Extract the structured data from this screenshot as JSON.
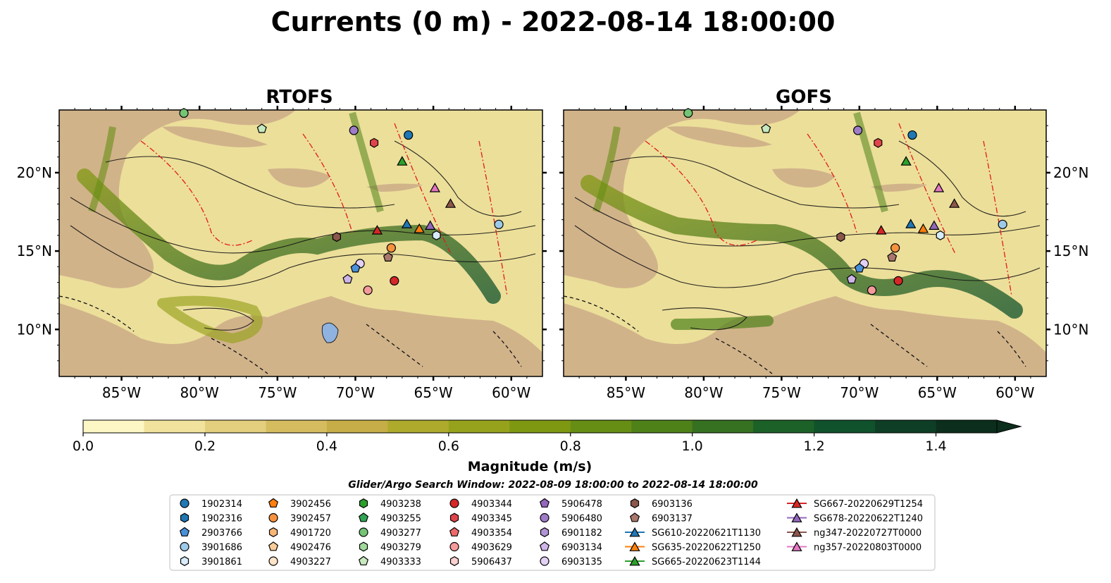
{
  "chart_data": {
    "type": "heatmap",
    "title": "Currents (0 m) - 2022-08-14 18:00:00",
    "panels": [
      {
        "title": "RTOFS",
        "tick_side": "left"
      },
      {
        "title": "GOFS",
        "tick_side": "right"
      }
    ],
    "extent": {
      "lon": [
        -89,
        -58
      ],
      "lat": [
        7,
        24
      ]
    },
    "lon_ticks": [
      -85,
      -80,
      -75,
      -70,
      -65,
      -60
    ],
    "lon_tick_labels": [
      "85°W",
      "80°W",
      "75°W",
      "70°W",
      "65°W",
      "60°W"
    ],
    "lat_ticks": [
      10,
      15,
      20
    ],
    "lat_tick_labels": [
      "10°N",
      "15°N",
      "20°N"
    ],
    "colorbar": {
      "label": "Magnitude (m/s)",
      "min": 0.0,
      "max": 1.5,
      "step": 0.1,
      "extend": "max",
      "ticks": [
        0.0,
        0.2,
        0.4,
        0.6,
        0.8,
        1.0,
        1.2,
        1.4
      ],
      "tick_labels": [
        "0.0",
        "0.2",
        "0.4",
        "0.6",
        "0.8",
        "1.0",
        "1.2",
        "1.4"
      ],
      "colors": [
        "#fdf7c6",
        "#f1e39e",
        "#e3cf7d",
        "#d5bd5f",
        "#c6ad47",
        "#aeaa2c",
        "#97a21c",
        "#7f9812",
        "#678e14",
        "#4f8119",
        "#367121",
        "#1c6228",
        "#10522c",
        "#0e3f26",
        "#0c2e1c"
      ]
    },
    "search_window": "Glider/Argo Search Window: 2022-08-09 18:00:00 to 2022-08-14 18:00:00",
    "legend": [
      {
        "name": "1902314",
        "marker": "circle",
        "color": "#1f77b4"
      },
      {
        "name": "1902316",
        "marker": "hexagon",
        "color": "#1f77b4"
      },
      {
        "name": "2903766",
        "marker": "pentagon",
        "color": "#4a90d9"
      },
      {
        "name": "3901686",
        "marker": "circle",
        "color": "#9ecae9"
      },
      {
        "name": "3901861",
        "marker": "hexagon",
        "color": "#d9ecf9"
      },
      {
        "name": "3902456",
        "marker": "pentagon",
        "color": "#ff7f0e"
      },
      {
        "name": "3902457",
        "marker": "circle",
        "color": "#f5923e"
      },
      {
        "name": "4901720",
        "marker": "hexagon",
        "color": "#f8b677"
      },
      {
        "name": "4902476",
        "marker": "pentagon",
        "color": "#fbcb99"
      },
      {
        "name": "4903227",
        "marker": "circle",
        "color": "#fde3c7"
      },
      {
        "name": "4903238",
        "marker": "hexagon",
        "color": "#2ca02c"
      },
      {
        "name": "4903255",
        "marker": "pentagon",
        "color": "#31a354"
      },
      {
        "name": "4903277",
        "marker": "circle",
        "color": "#74c476"
      },
      {
        "name": "4903279",
        "marker": "hexagon",
        "color": "#a1d99b"
      },
      {
        "name": "4903333",
        "marker": "pentagon",
        "color": "#c7e9c0"
      },
      {
        "name": "4903344",
        "marker": "circle",
        "color": "#d62728"
      },
      {
        "name": "4903345",
        "marker": "hexagon",
        "color": "#e0444a"
      },
      {
        "name": "4903354",
        "marker": "pentagon",
        "color": "#ee6a6a"
      },
      {
        "name": "4903629",
        "marker": "circle",
        "color": "#f59a9a"
      },
      {
        "name": "5906437",
        "marker": "hexagon",
        "color": "#fdd0d0"
      },
      {
        "name": "5906478",
        "marker": "pentagon",
        "color": "#9467bd"
      },
      {
        "name": "5906480",
        "marker": "circle",
        "color": "#9e7cc7"
      },
      {
        "name": "6901182",
        "marker": "hexagon",
        "color": "#b294d6"
      },
      {
        "name": "6903134",
        "marker": "pentagon",
        "color": "#cdb5e8"
      },
      {
        "name": "6903135",
        "marker": "circle",
        "color": "#e3d1f5"
      },
      {
        "name": "6903136",
        "marker": "hexagon",
        "color": "#8c564b"
      },
      {
        "name": "6903137",
        "marker": "pentagon",
        "color": "#a9776b"
      },
      {
        "name": "SG610-20220621T1130",
        "marker": "triangle-line",
        "color": "#1f77b4"
      },
      {
        "name": "SG635-20220622T1250",
        "marker": "triangle-line",
        "color": "#ff7f0e"
      },
      {
        "name": "SG665-20220623T1144",
        "marker": "triangle-line",
        "color": "#2ca02c"
      },
      {
        "name": "SG667-20220629T1254",
        "marker": "triangle-line",
        "color": "#d62728"
      },
      {
        "name": "SG678-20220622T1240",
        "marker": "triangle-line",
        "color": "#9467bd"
      },
      {
        "name": "ng347-20220727T0000",
        "marker": "triangle-line",
        "color": "#8c564b"
      },
      {
        "name": "ng357-20220803T0000",
        "marker": "triangle-line",
        "color": "#e377c2"
      }
    ],
    "observations": {
      "RTOFS": [
        {
          "name": "1902314",
          "lon": -66.6,
          "lat": 22.4
        },
        {
          "name": "3901686",
          "lon": -60.8,
          "lat": 16.7
        },
        {
          "name": "3901861",
          "lon": -64.8,
          "lat": 16.0
        },
        {
          "name": "3902457",
          "lon": -67.7,
          "lat": 15.2
        },
        {
          "name": "4903333",
          "lon": -76.0,
          "lat": 22.8
        },
        {
          "name": "4903277",
          "lon": -81.0,
          "lat": 23.8
        },
        {
          "name": "4903344",
          "lon": -67.5,
          "lat": 13.1
        },
        {
          "name": "4903345",
          "lon": -68.8,
          "lat": 21.9
        },
        {
          "name": "4903629",
          "lon": -69.2,
          "lat": 12.5
        },
        {
          "name": "6903136",
          "lon": -71.2,
          "lat": 15.9
        },
        {
          "name": "6903137",
          "lon": -67.9,
          "lat": 14.6
        },
        {
          "name": "6903135",
          "lon": -69.7,
          "lat": 14.2
        },
        {
          "name": "2903766",
          "lon": -70.0,
          "lat": 13.9
        },
        {
          "name": "6903134",
          "lon": -70.5,
          "lat": 13.2
        },
        {
          "name": "5906480",
          "lon": -70.1,
          "lat": 22.7
        },
        {
          "name": "SG667-20220629T1254",
          "lon": -68.6,
          "lat": 16.3
        },
        {
          "name": "SG610-20220621T1130",
          "lon": -66.7,
          "lat": 16.7
        },
        {
          "name": "SG635-20220622T1250",
          "lon": -65.9,
          "lat": 16.4
        },
        {
          "name": "SG678-20220622T1240",
          "lon": -65.2,
          "lat": 16.6
        },
        {
          "name": "SG665-20220623T1144",
          "lon": -67.0,
          "lat": 20.7
        },
        {
          "name": "ng357-20220803T0000",
          "lon": -64.9,
          "lat": 19.0
        },
        {
          "name": "ng347-20220727T0000",
          "lon": -63.9,
          "lat": 18.0
        }
      ],
      "GOFS": [
        {
          "name": "1902314",
          "lon": -66.6,
          "lat": 22.4
        },
        {
          "name": "3901686",
          "lon": -60.8,
          "lat": 16.7
        },
        {
          "name": "3901861",
          "lon": -64.8,
          "lat": 16.0
        },
        {
          "name": "3902457",
          "lon": -67.7,
          "lat": 15.2
        },
        {
          "name": "4903333",
          "lon": -76.0,
          "lat": 22.8
        },
        {
          "name": "4903277",
          "lon": -81.0,
          "lat": 23.8
        },
        {
          "name": "4903344",
          "lon": -67.5,
          "lat": 13.1
        },
        {
          "name": "4903345",
          "lon": -68.8,
          "lat": 21.9
        },
        {
          "name": "4903629",
          "lon": -69.2,
          "lat": 12.5
        },
        {
          "name": "6903136",
          "lon": -71.2,
          "lat": 15.9
        },
        {
          "name": "6903137",
          "lon": -67.9,
          "lat": 14.6
        },
        {
          "name": "6903135",
          "lon": -69.7,
          "lat": 14.2
        },
        {
          "name": "2903766",
          "lon": -70.0,
          "lat": 13.9
        },
        {
          "name": "6903134",
          "lon": -70.5,
          "lat": 13.2
        },
        {
          "name": "5906480",
          "lon": -70.1,
          "lat": 22.7
        },
        {
          "name": "SG667-20220629T1254",
          "lon": -68.6,
          "lat": 16.3
        },
        {
          "name": "SG610-20220621T1130",
          "lon": -66.7,
          "lat": 16.7
        },
        {
          "name": "SG635-20220622T1250",
          "lon": -65.9,
          "lat": 16.4
        },
        {
          "name": "SG678-20220622T1240",
          "lon": -65.2,
          "lat": 16.6
        },
        {
          "name": "SG665-20220623T1144",
          "lon": -67.0,
          "lat": 20.7
        },
        {
          "name": "ng357-20220803T0000",
          "lon": -64.9,
          "lat": 19.0
        },
        {
          "name": "ng347-20220727T0000",
          "lon": -63.9,
          "lat": 18.0
        }
      ]
    }
  }
}
